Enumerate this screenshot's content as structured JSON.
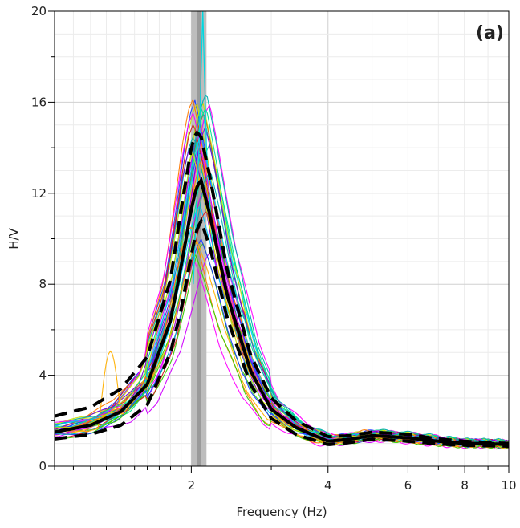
{
  "chart_data": {
    "type": "line",
    "panel_label": "(a)",
    "xlabel": "Frequency (Hz)",
    "ylabel": "H/V",
    "x_scale": "log",
    "xlim": [
      1,
      10
    ],
    "ylim": [
      0,
      20
    ],
    "x_tick_labels": [
      {
        "value": 2,
        "label": "2"
      },
      {
        "value": 4,
        "label": "4"
      },
      {
        "value": 6,
        "label": "6"
      },
      {
        "value": 8,
        "label": "8"
      },
      {
        "value": 10,
        "label": "10"
      }
    ],
    "y_tick_labels": [
      {
        "value": 0,
        "label": "0"
      },
      {
        "value": 4,
        "label": "4"
      },
      {
        "value": 8,
        "label": "8"
      },
      {
        "value": 12,
        "label": "12"
      },
      {
        "value": 16,
        "label": "16"
      },
      {
        "value": 20,
        "label": "20"
      }
    ],
    "grid": true,
    "peak_frequency_band": {
      "min": 2.0,
      "center": 2.08,
      "max": 2.16,
      "color": "#9a9a9a"
    },
    "mean_curve": {
      "x": [
        1,
        1.2,
        1.4,
        1.6,
        1.8,
        1.9,
        2.0,
        2.05,
        2.1,
        2.2,
        2.4,
        2.7,
        3.0,
        3.4,
        4.0,
        4.5,
        5.0,
        5.5,
        6.0,
        7.0,
        8.0,
        9.0,
        10.0
      ],
      "y": [
        1.5,
        1.8,
        2.4,
        3.6,
        6.4,
        8.8,
        11.3,
        12.2,
        12.6,
        11.0,
        7.5,
        4.2,
        2.5,
        1.7,
        1.1,
        1.2,
        1.35,
        1.3,
        1.25,
        1.1,
        1.0,
        1.0,
        0.95
      ],
      "color": "#000000"
    },
    "std_plus_curve": {
      "x": [
        1,
        1.2,
        1.4,
        1.6,
        1.8,
        1.9,
        2.0,
        2.05,
        2.1,
        2.2,
        2.4,
        2.7,
        3.0,
        3.4,
        4.0,
        4.5,
        5.0,
        5.5,
        6.0,
        7.0,
        8.0,
        9.0,
        10.0
      ],
      "y": [
        2.2,
        2.6,
        3.4,
        4.8,
        8.2,
        11.3,
        14.0,
        14.7,
        14.5,
        12.7,
        8.6,
        4.9,
        3.0,
        2.0,
        1.3,
        1.35,
        1.5,
        1.45,
        1.4,
        1.2,
        1.1,
        1.05,
        1.0
      ],
      "color": "#000000"
    },
    "std_minus_curve": {
      "x": [
        1,
        1.2,
        1.4,
        1.6,
        1.8,
        1.9,
        2.0,
        2.05,
        2.1,
        2.2,
        2.4,
        2.7,
        3.0,
        3.4,
        4.0,
        4.5,
        5.0,
        5.5,
        6.0,
        7.0,
        8.0,
        9.0,
        10.0
      ],
      "y": [
        1.2,
        1.4,
        1.8,
        2.7,
        5.0,
        6.9,
        9.3,
        10.3,
        10.8,
        9.6,
        6.5,
        3.6,
        2.1,
        1.4,
        0.95,
        1.05,
        1.2,
        1.15,
        1.1,
        0.98,
        0.92,
        0.9,
        0.88
      ],
      "color": "#000000"
    },
    "window_curves_colors": [
      "#ff00ff",
      "#7a00d9",
      "#d000ff",
      "#00c8ff",
      "#00e090",
      "#1f3cff",
      "#c8e000",
      "#ff7a00",
      "#d42020",
      "#39d000",
      "#00b0b0",
      "#ffb000"
    ]
  }
}
